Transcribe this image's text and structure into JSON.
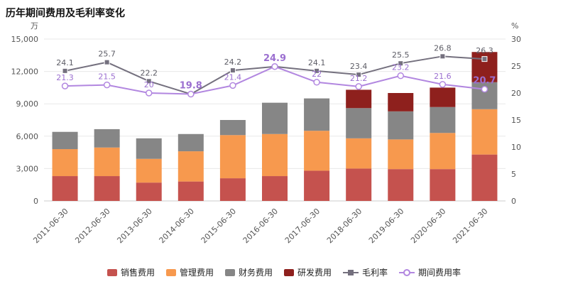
{
  "chart_data": {
    "type": "bar",
    "title": "历年期间费用及毛利率变化",
    "left_axis": {
      "unit": "万",
      "min": 0,
      "max": 15000,
      "ticks": [
        0,
        3000,
        6000,
        9000,
        12000,
        15000
      ]
    },
    "right_axis": {
      "unit": "%",
      "min": 0,
      "max": 30,
      "ticks": [
        0,
        5,
        10,
        15,
        20,
        25,
        30
      ]
    },
    "categories": [
      "2011-06-30",
      "2012-06-30",
      "2013-06-30",
      "2014-06-30",
      "2015-06-30",
      "2016-06-30",
      "2017-06-30",
      "2018-06-30",
      "2019-06-30",
      "2020-06-30",
      "2021-06-30"
    ],
    "bar_series": [
      {
        "key": "sales-expense",
        "name": "销售费用",
        "color": "#c5524e",
        "values": [
          2300,
          2300,
          1700,
          1800,
          2100,
          2300,
          2800,
          3000,
          2950,
          2950,
          4300
        ]
      },
      {
        "key": "admin-expense",
        "name": "管理费用",
        "color": "#f7994e",
        "values": [
          2500,
          2650,
          2200,
          2800,
          4000,
          3900,
          3700,
          2800,
          2750,
          3350,
          4200
        ]
      },
      {
        "key": "finance-expense",
        "name": "财务费用",
        "color": "#868686",
        "values": [
          1600,
          1700,
          1900,
          1600,
          1400,
          2900,
          3000,
          2800,
          2600,
          2400,
          2500
        ]
      },
      {
        "key": "rd-expense",
        "name": "研发费用",
        "color": "#8e201d",
        "values": [
          0,
          0,
          0,
          0,
          0,
          0,
          0,
          1700,
          1700,
          1800,
          2800
        ]
      }
    ],
    "line_series": [
      {
        "key": "gross-margin",
        "name": "毛利率",
        "axis": "right",
        "color": "#74707e",
        "marker": "square",
        "label_color": "#5d5d66",
        "values": [
          24.1,
          25.7,
          22.2,
          19.8,
          24.2,
          24.9,
          24.1,
          23.4,
          25.5,
          26.8,
          26.3
        ],
        "labels": [
          "24.1",
          "25.7",
          "22.2",
          null,
          "24.2",
          null,
          "24.1",
          "23.4",
          "25.5",
          "26.8",
          "26.3"
        ],
        "emphasis": [
          false,
          false,
          false,
          false,
          false,
          false,
          false,
          false,
          false,
          false,
          false
        ]
      },
      {
        "key": "period-expense-ratio",
        "name": "期间费用率",
        "axis": "right",
        "color": "#b287e0",
        "marker": "circle",
        "label_color": "#9b6fd0",
        "values": [
          21.3,
          21.5,
          20,
          19.8,
          21.4,
          24.9,
          22,
          21.2,
          23.2,
          21.6,
          20.7
        ],
        "labels": [
          "21.3",
          "21.5",
          "20",
          "19.8",
          "21.4",
          "24.9",
          "22",
          "21.2",
          "23.2",
          "21.6",
          "20.7"
        ],
        "emphasis": [
          false,
          false,
          false,
          true,
          false,
          true,
          false,
          false,
          false,
          false,
          true
        ]
      }
    ]
  }
}
